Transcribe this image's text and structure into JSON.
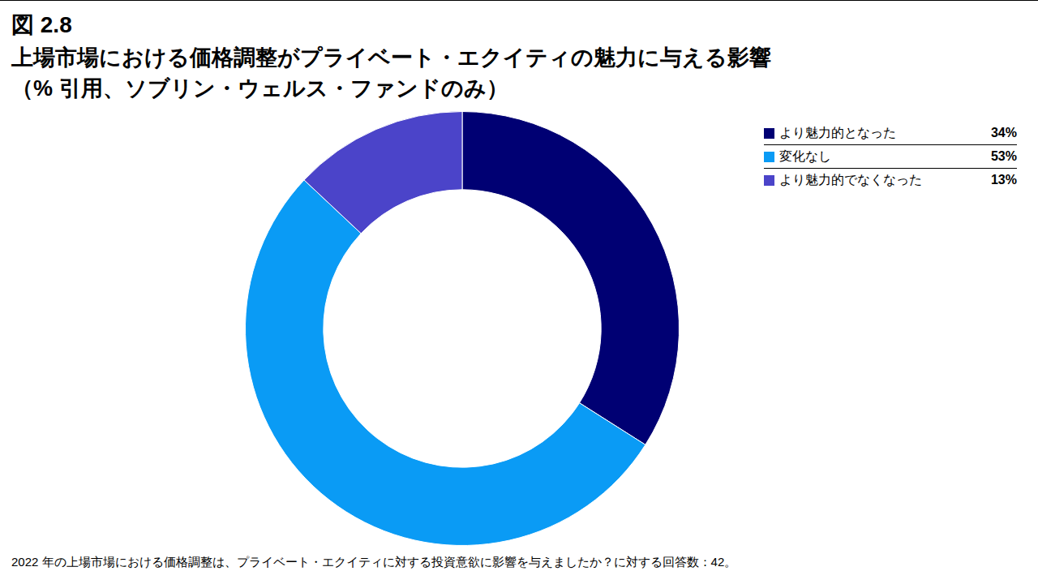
{
  "chart_data": {
    "type": "doughnut",
    "figure_label": "図 2.8",
    "title": "上場市場における価格調整がプライベート・エクイティの魅力に与える影響",
    "subtitle": "（% 引用、ソブリン・ウェルス・ファンドのみ）",
    "categories": [
      "より魅力的となった",
      "変化なし",
      "より魅力的でなくなった"
    ],
    "values": [
      34,
      53,
      13
    ],
    "value_labels": [
      "34%",
      "53%",
      "13%"
    ],
    "colors": [
      "#000073",
      "#0a9bf5",
      "#4b44c9"
    ],
    "legend": "top-right",
    "data_labels": false,
    "note": "2022 年の上場市場における価格調整は、プライベート・エクイティに対する投資意欲に影響を与えましたか？に対する回答数：42。"
  }
}
